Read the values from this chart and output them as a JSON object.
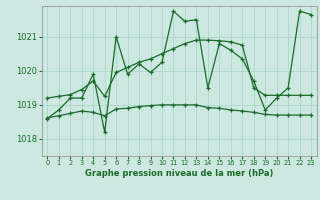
{
  "title": "Graphe pression niveau de la mer (hPa)",
  "background_color": "#cde8e0",
  "grid_color": "#b0d8cc",
  "line_color": "#1a6b2a",
  "x_labels": [
    "0",
    "1",
    "2",
    "3",
    "4",
    "5",
    "6",
    "7",
    "8",
    "9",
    "10",
    "11",
    "12",
    "13",
    "14",
    "15",
    "16",
    "17",
    "18",
    "19",
    "20",
    "21",
    "22",
    "23"
  ],
  "ylim": [
    1017.5,
    1021.9
  ],
  "yticks": [
    1018,
    1019,
    1020,
    1021
  ],
  "hours": [
    0,
    1,
    2,
    3,
    4,
    5,
    6,
    7,
    8,
    9,
    10,
    11,
    12,
    13,
    14,
    15,
    16,
    17,
    18,
    19,
    20,
    21,
    22,
    23
  ],
  "series_main": [
    1018.6,
    1018.85,
    1019.2,
    1019.2,
    1019.9,
    1018.2,
    1021.0,
    1019.9,
    1020.2,
    1019.95,
    1020.25,
    1021.75,
    1021.45,
    1021.5,
    1019.5,
    1020.8,
    1020.6,
    1020.35,
    1019.7,
    1018.85,
    1019.2,
    1019.5,
    1021.75,
    1021.65
  ],
  "series_high": [
    1019.2,
    1019.25,
    1019.3,
    1019.45,
    1019.7,
    1019.25,
    1019.95,
    1020.1,
    1020.25,
    1020.35,
    1020.5,
    1020.65,
    1020.8,
    1020.9,
    1020.9,
    1020.88,
    1020.85,
    1020.75,
    1019.5,
    1019.28,
    1019.28,
    1019.28,
    1019.28,
    1019.28
  ],
  "series_low": [
    1018.62,
    1018.68,
    1018.75,
    1018.82,
    1018.78,
    1018.68,
    1018.88,
    1018.9,
    1018.95,
    1018.98,
    1019.0,
    1019.0,
    1019.0,
    1019.0,
    1018.92,
    1018.9,
    1018.85,
    1018.82,
    1018.78,
    1018.72,
    1018.7,
    1018.7,
    1018.7,
    1018.7
  ]
}
